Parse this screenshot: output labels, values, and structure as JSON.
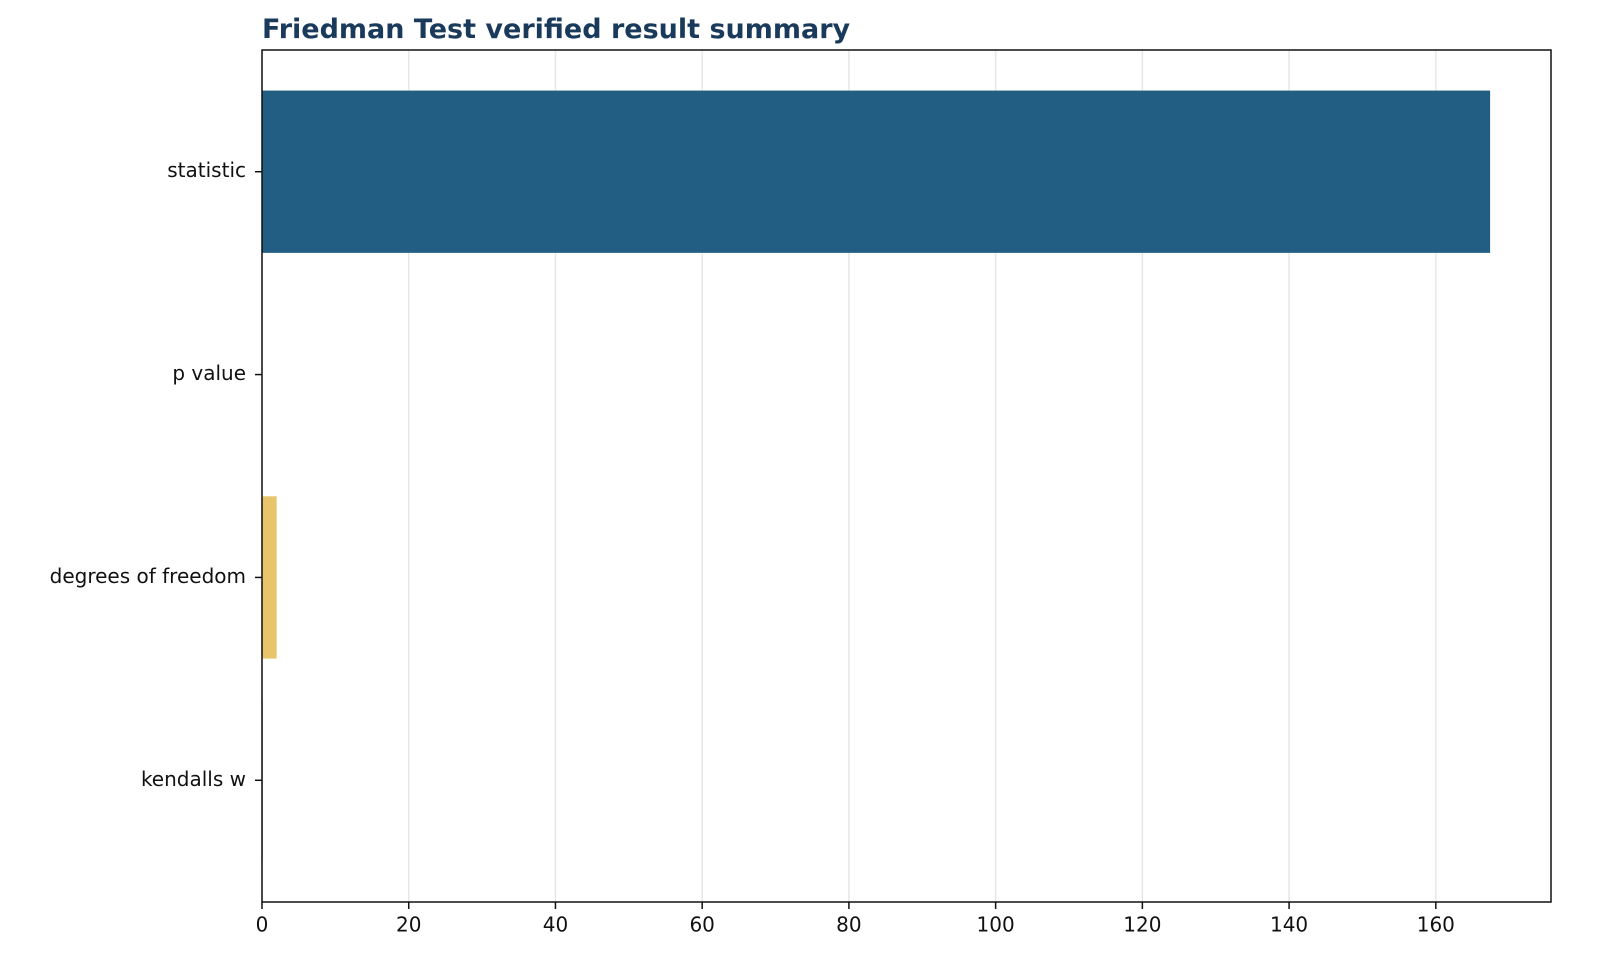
{
  "chart_data": {
    "type": "barh",
    "title": "Friedman Test verified result summary",
    "categories": [
      "statistic",
      "p value",
      "degrees of freedom",
      "kendalls w"
    ],
    "values": [
      167.4,
      0,
      2,
      0.08
    ],
    "colors": [
      "#1f5c82",
      "#7f8c8d",
      "#e8c46a",
      "#3b2a1e"
    ],
    "xlim": [
      0,
      175.7
    ],
    "xticks": [
      0,
      20,
      40,
      60,
      80,
      100,
      120,
      140,
      160
    ],
    "grid": true
  }
}
